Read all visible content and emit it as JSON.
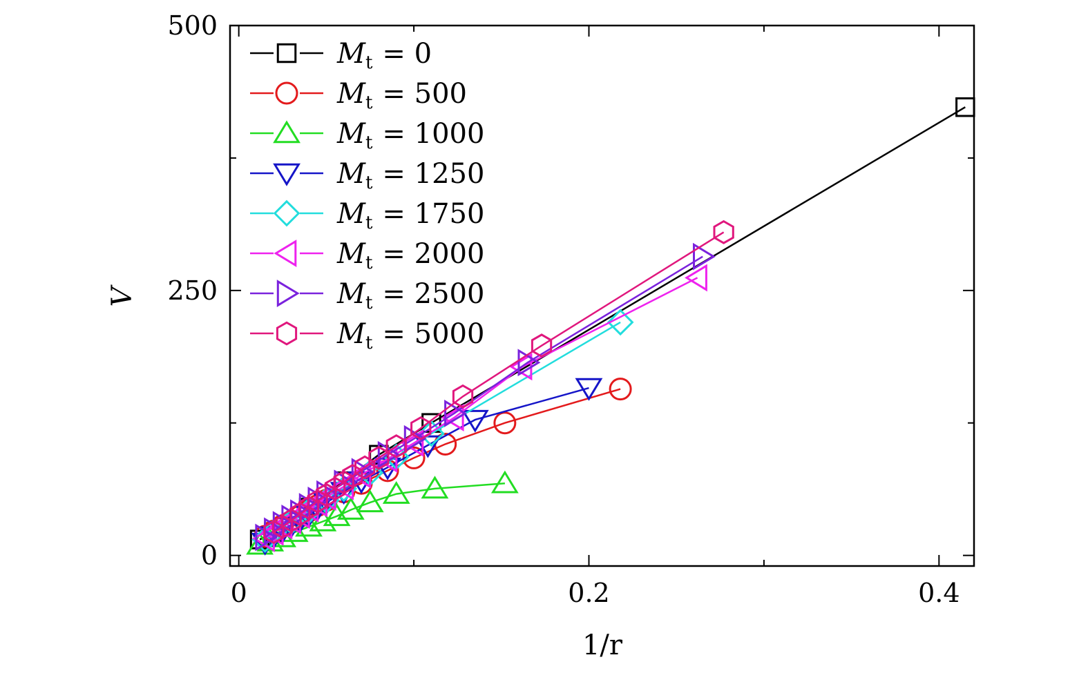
{
  "chart_data": {
    "type": "line",
    "xlabel": "1/r",
    "ylabel": "V",
    "xlim": [
      -0.005,
      0.42
    ],
    "ylim": [
      -10,
      500
    ],
    "xticks": [
      0,
      0.2,
      0.4
    ],
    "xtick_labels": [
      "0",
      "0.2",
      "0.4"
    ],
    "xminor": [
      0.1,
      0.3
    ],
    "yticks": [
      0,
      250,
      500
    ],
    "ytick_labels": [
      "0",
      "250",
      "500"
    ],
    "yminor": [
      125,
      375
    ],
    "grid": false,
    "legend_position": "top-left",
    "series": [
      {
        "name": "M_t = 0",
        "label_prefix": "M",
        "label_sub": "t",
        "label_value": "= 0",
        "color": "#000000",
        "marker": "square",
        "points": [
          [
            0.012,
            15
          ],
          [
            0.02,
            22
          ],
          [
            0.04,
            45
          ],
          [
            0.06,
            70
          ],
          [
            0.08,
            95
          ],
          [
            0.11,
            125
          ],
          [
            0.415,
            423
          ]
        ]
      },
      {
        "name": "M_t = 500",
        "label_prefix": "M",
        "label_sub": "t",
        "label_value": "= 500",
        "color": "#e31a1c",
        "marker": "circle",
        "points": [
          [
            0.015,
            18
          ],
          [
            0.02,
            23
          ],
          [
            0.025,
            28
          ],
          [
            0.03,
            32
          ],
          [
            0.035,
            37
          ],
          [
            0.04,
            42
          ],
          [
            0.045,
            47
          ],
          [
            0.05,
            52
          ],
          [
            0.06,
            60
          ],
          [
            0.07,
            68
          ],
          [
            0.085,
            80
          ],
          [
            0.1,
            92
          ],
          [
            0.118,
            105
          ],
          [
            0.152,
            125
          ],
          [
            0.218,
            157
          ]
        ]
      },
      {
        "name": "M_t = 1000",
        "label_prefix": "M",
        "label_sub": "t",
        "label_value": "= 1000",
        "color": "#22dd22",
        "marker": "triangle-up",
        "points": [
          [
            0.012,
            10
          ],
          [
            0.018,
            13
          ],
          [
            0.025,
            17
          ],
          [
            0.032,
            22
          ],
          [
            0.04,
            27
          ],
          [
            0.048,
            32
          ],
          [
            0.056,
            37
          ],
          [
            0.064,
            43
          ],
          [
            0.075,
            50
          ],
          [
            0.09,
            58
          ],
          [
            0.112,
            63
          ],
          [
            0.152,
            68
          ]
        ]
      },
      {
        "name": "M_t = 1250",
        "label_prefix": "M",
        "label_sub": "t",
        "label_value": "= 1250",
        "color": "#1515c8",
        "marker": "triangle-down",
        "points": [
          [
            0.015,
            12
          ],
          [
            0.02,
            18
          ],
          [
            0.025,
            23
          ],
          [
            0.03,
            28
          ],
          [
            0.035,
            33
          ],
          [
            0.04,
            38
          ],
          [
            0.045,
            44
          ],
          [
            0.05,
            50
          ],
          [
            0.06,
            60
          ],
          [
            0.07,
            70
          ],
          [
            0.085,
            83
          ],
          [
            0.108,
            104
          ],
          [
            0.135,
            128
          ],
          [
            0.2,
            158
          ]
        ]
      },
      {
        "name": "M_t = 1750",
        "label_prefix": "M",
        "label_sub": "t",
        "label_value": "= 1750",
        "color": "#22dddd",
        "marker": "diamond",
        "points": [
          [
            0.015,
            15
          ],
          [
            0.02,
            22
          ],
          [
            0.03,
            32
          ],
          [
            0.04,
            42
          ],
          [
            0.05,
            52
          ],
          [
            0.06,
            63
          ],
          [
            0.075,
            78
          ],
          [
            0.09,
            93
          ],
          [
            0.11,
            115
          ],
          [
            0.218,
            220
          ]
        ]
      },
      {
        "name": "M_t = 2000",
        "label_prefix": "M",
        "label_sub": "t",
        "label_value": "= 2000",
        "color": "#ee22ee",
        "marker": "triangle-left",
        "points": [
          [
            0.015,
            16
          ],
          [
            0.02,
            22
          ],
          [
            0.025,
            28
          ],
          [
            0.03,
            33
          ],
          [
            0.035,
            38
          ],
          [
            0.04,
            44
          ],
          [
            0.045,
            49
          ],
          [
            0.05,
            55
          ],
          [
            0.06,
            65
          ],
          [
            0.07,
            76
          ],
          [
            0.085,
            91
          ],
          [
            0.1,
            106
          ],
          [
            0.123,
            130
          ],
          [
            0.162,
            178
          ],
          [
            0.262,
            262
          ]
        ]
      },
      {
        "name": "M_t = 2500",
        "label_prefix": "M",
        "label_sub": "t",
        "label_value": "= 2500",
        "color": "#7a22dd",
        "marker": "triangle-right",
        "points": [
          [
            0.015,
            17
          ],
          [
            0.02,
            23
          ],
          [
            0.025,
            29
          ],
          [
            0.03,
            35
          ],
          [
            0.035,
            40
          ],
          [
            0.04,
            46
          ],
          [
            0.045,
            52
          ],
          [
            0.05,
            58
          ],
          [
            0.06,
            68
          ],
          [
            0.07,
            79
          ],
          [
            0.085,
            95
          ],
          [
            0.1,
            110
          ],
          [
            0.123,
            134
          ],
          [
            0.165,
            182
          ],
          [
            0.265,
            282
          ]
        ]
      },
      {
        "name": "M_t = 5000",
        "label_prefix": "M",
        "label_sub": "t",
        "label_value": "= 5000",
        "color": "#e0177d",
        "marker": "hexagon",
        "points": [
          [
            0.02,
            22
          ],
          [
            0.025,
            27
          ],
          [
            0.03,
            33
          ],
          [
            0.035,
            39
          ],
          [
            0.04,
            45
          ],
          [
            0.045,
            51
          ],
          [
            0.05,
            57
          ],
          [
            0.055,
            63
          ],
          [
            0.06,
            69
          ],
          [
            0.065,
            75
          ],
          [
            0.072,
            83
          ],
          [
            0.08,
            92
          ],
          [
            0.09,
            103
          ],
          [
            0.104,
            120
          ],
          [
            0.128,
            150
          ],
          [
            0.173,
            198
          ],
          [
            0.277,
            305
          ]
        ]
      }
    ]
  }
}
